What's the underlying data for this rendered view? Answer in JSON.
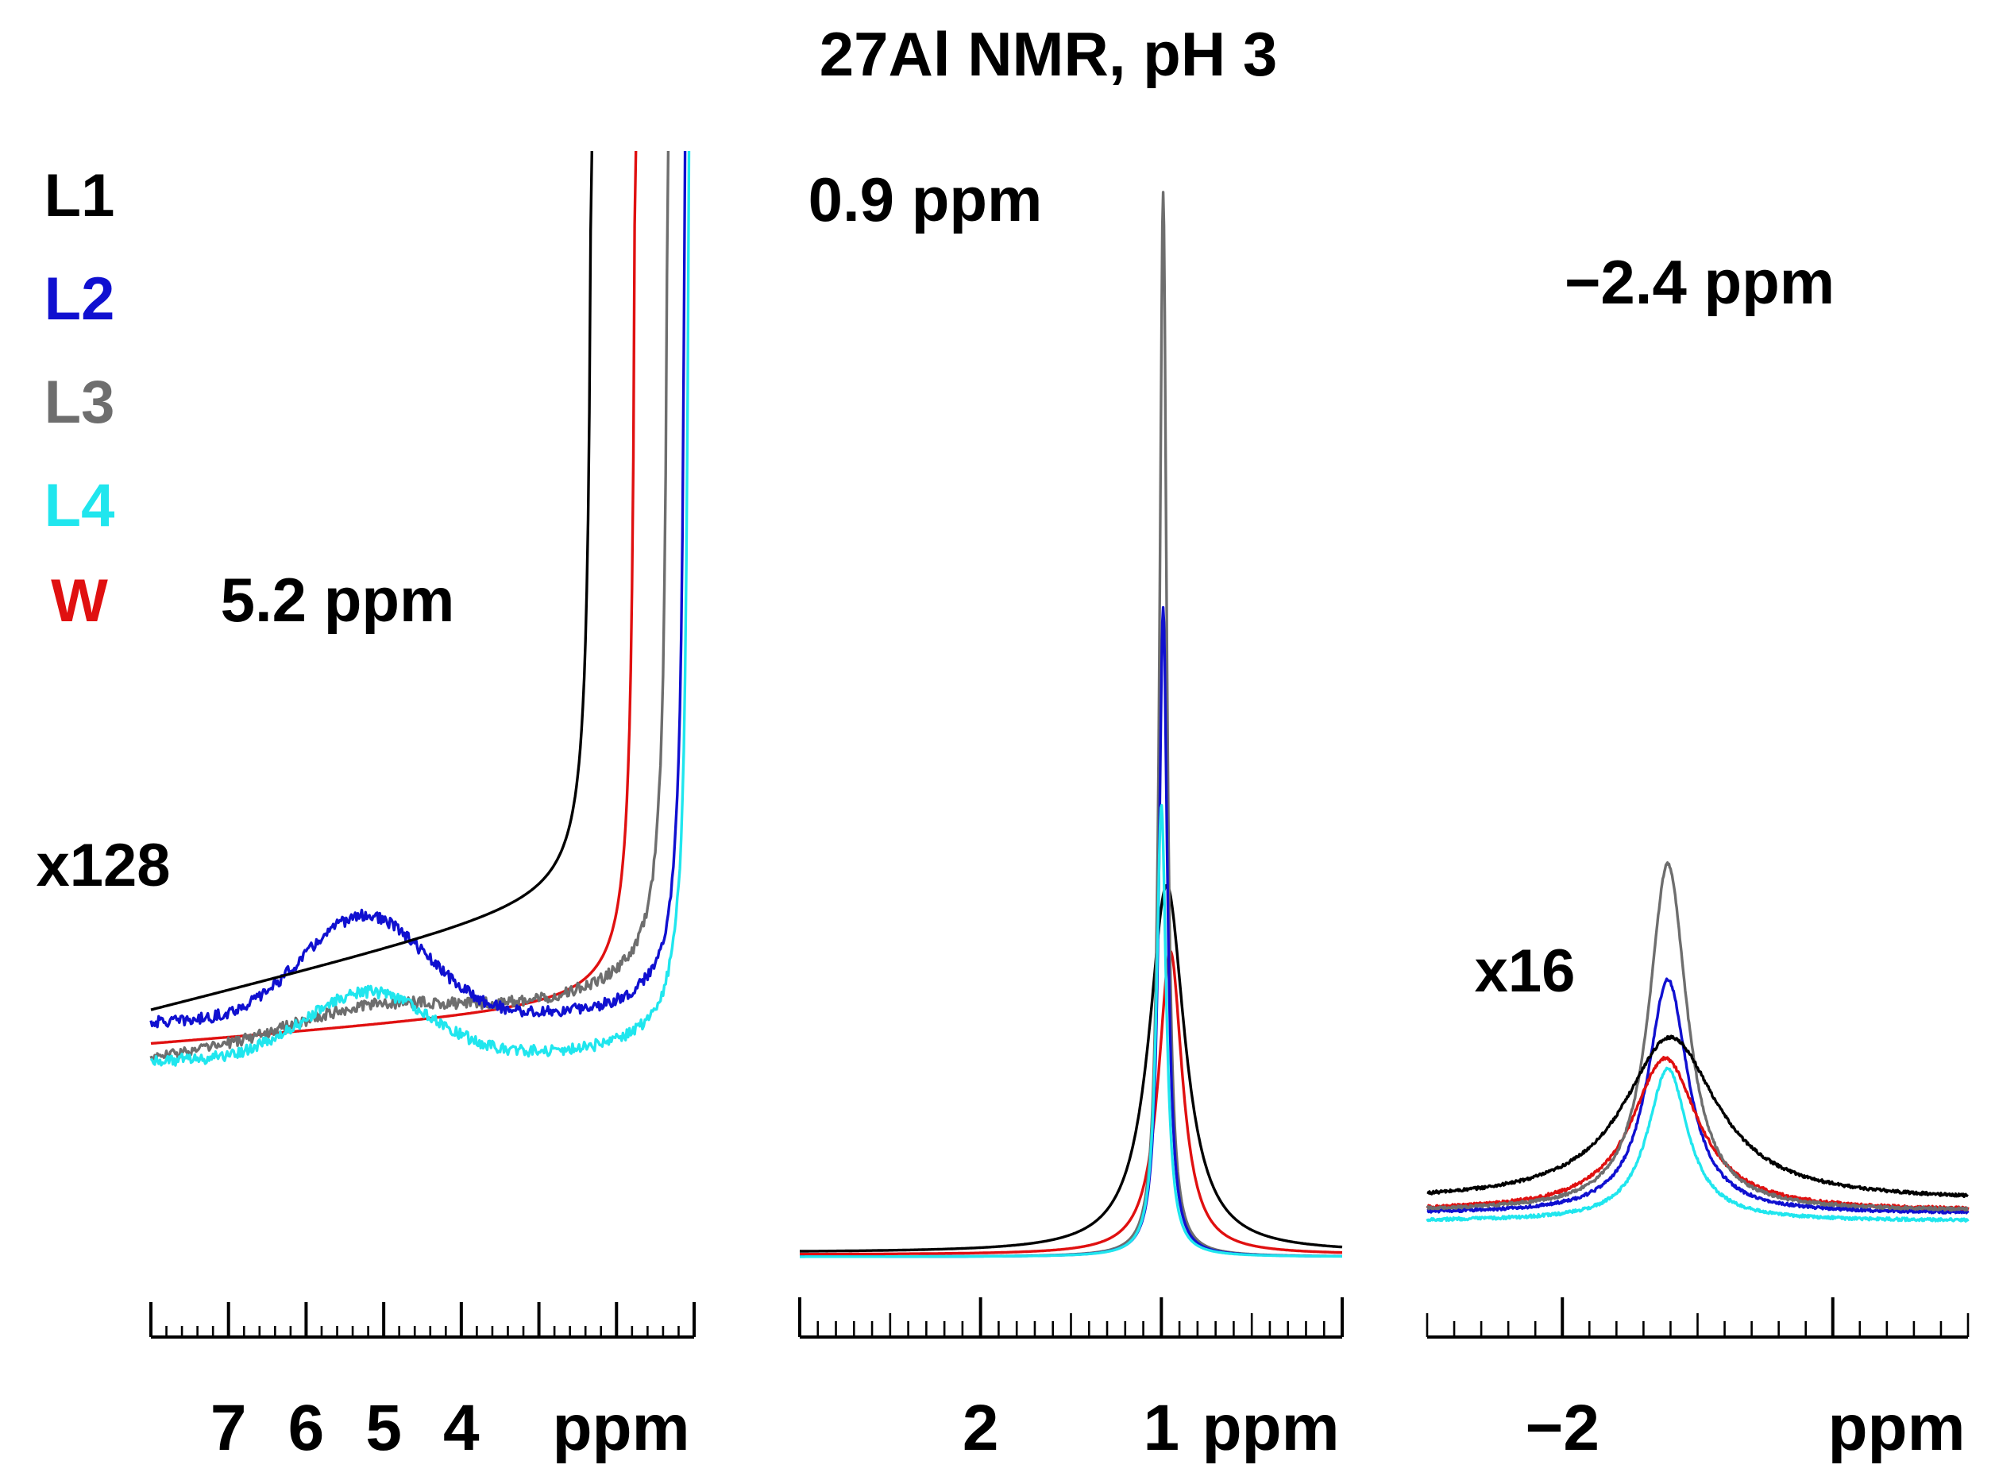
{
  "chart_data": {
    "type": "line",
    "title": "27Al NMR, pH 3",
    "legend": {
      "placement": "top-left",
      "entries": [
        {
          "label": "L1",
          "color": "#000000"
        },
        {
          "label": "L2",
          "color": "#1010d0"
        },
        {
          "label": "L3",
          "color": "#6e6e6e"
        },
        {
          "label": "L4",
          "color": "#20e6ee"
        },
        {
          "label": "W",
          "color": "#e01010"
        }
      ]
    },
    "panels": [
      {
        "id": "left",
        "xlim": [
          8,
          1
        ],
        "xlabel": "ppm",
        "tick_labels": [
          "7",
          "6",
          "5",
          "4"
        ],
        "tick_values": [
          7,
          6,
          5,
          4
        ],
        "peak_label": "5.2 ppm",
        "scale_label": "x128",
        "series": [
          {
            "name": "L1",
            "offset": 0.175,
            "slope": 0.04,
            "humpAmp": 0.0,
            "humpPos": 5.2,
            "humpW": 0.8,
            "tailA": 0.75,
            "tailC": 2.28,
            "noise": 0.0
          },
          {
            "name": "L2",
            "offset": 0.15,
            "slope": 0.0,
            "humpAmp": 0.22,
            "humpPos": 5.25,
            "humpW": 0.8,
            "tailA": 0.75,
            "tailC": 1.08,
            "noise": 0.012
          },
          {
            "name": "L3",
            "offset": 0.075,
            "slope": 0.02,
            "humpAmp": 0.05,
            "humpPos": 5.2,
            "humpW": 1.0,
            "tailA": 0.75,
            "tailC": 1.3,
            "noise": 0.012
          },
          {
            "name": "L4",
            "offset": 0.07,
            "slope": 0.0,
            "humpAmp": 0.14,
            "humpPos": 5.2,
            "humpW": 0.8,
            "tailA": 0.75,
            "tailC": 1.03,
            "noise": 0.012
          },
          {
            "name": "W",
            "offset": 0.105,
            "slope": 0.012,
            "humpAmp": 0.0,
            "humpPos": 5.2,
            "humpW": 0.8,
            "tailA": 0.75,
            "tailC": 1.72,
            "noise": 0.0
          }
        ]
      },
      {
        "id": "middle",
        "xlim": [
          3,
          0
        ],
        "xlabel": "ppm",
        "tick_labels": [
          "2",
          "1"
        ],
        "tick_values": [
          2,
          1
        ],
        "peak_label": "0.9 ppm",
        "series": [
          {
            "name": "L1",
            "center": 0.97,
            "height": 0.345,
            "width": 0.12,
            "base": 0.004
          },
          {
            "name": "L2",
            "center": 0.99,
            "height": 0.61,
            "width": 0.028,
            "base": 0.0
          },
          {
            "name": "L3",
            "center": 0.99,
            "height": 1.0,
            "width": 0.024,
            "base": 0.0
          },
          {
            "name": "L4",
            "center": 1.0,
            "height": 0.425,
            "width": 0.032,
            "base": 0.0
          },
          {
            "name": "W",
            "center": 0.95,
            "height": 0.285,
            "width": 0.08,
            "base": 0.002
          }
        ]
      },
      {
        "id": "right",
        "xlim": [
          -1.5,
          -3.5
        ],
        "xlabel": "ppm",
        "tick_labels": [
          "−2"
        ],
        "tick_values": [
          -2
        ],
        "peak_label": "−2.4 ppm",
        "scale_label": "x16",
        "series": [
          {
            "name": "L1",
            "center": -2.4,
            "height": 0.333,
            "width": 0.21,
            "base": 0.045
          },
          {
            "name": "L2",
            "center": -2.39,
            "height": 0.475,
            "width": 0.09,
            "base": 0.02
          },
          {
            "name": "L3",
            "center": -2.39,
            "height": 0.705,
            "width": 0.085,
            "base": 0.025
          },
          {
            "name": "L4",
            "center": -2.39,
            "height": 0.31,
            "width": 0.09,
            "base": 0.005
          },
          {
            "name": "W",
            "center": -2.38,
            "height": 0.31,
            "width": 0.15,
            "base": 0.025
          }
        ]
      }
    ]
  }
}
